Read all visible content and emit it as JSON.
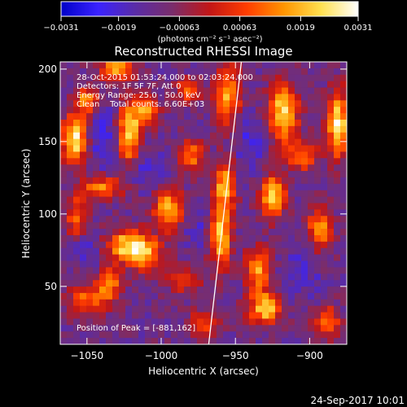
{
  "chart_data": {
    "type": "heatmap",
    "title": "Reconstructed RHESSI Image",
    "xlabel": "Heliocentric X (arcsec)",
    "ylabel": "Heliocentric Y (arcsec)",
    "xlim": [
      -1068,
      -875
    ],
    "ylim": [
      10,
      205
    ],
    "xticks": [
      -1050,
      -1000,
      -950,
      -900
    ],
    "yticks": [
      50,
      100,
      150,
      200
    ],
    "xtick_labels": [
      "−1050",
      "−1000",
      "−950",
      "−900"
    ],
    "ytick_labels": [
      "50",
      "100",
      "150",
      "200"
    ],
    "colorbar": {
      "range": [
        -0.0031,
        0.0031
      ],
      "ticks": [
        -0.0031,
        -0.0019,
        -0.00063,
        0.00063,
        0.0019,
        0.0031
      ],
      "tick_labels": [
        "−0.0031",
        "−0.0019",
        "−0.00063",
        "0.00063",
        "0.0019",
        "0.0031"
      ],
      "unit_label": "(photons cm⁻² s⁻¹ asec⁻²)",
      "colormap": [
        "#0000c8",
        "#3a22ff",
        "#5a2ca6",
        "#7a2d6b",
        "#c21616",
        "#ff3d00",
        "#ff9500",
        "#ffe050",
        "#ffffff"
      ]
    },
    "annotations": {
      "time": "28-Oct-2015 01:53:24.000 to 02:03:24.000",
      "detectors": "Detectors: 1F 5F 7F, Att 0",
      "energy": "Energy Range: 25.0 - 50.0 keV",
      "clean": "Clean    Total counts: 6.60E+03",
      "peak": "Position of Peak = [-881,162]"
    },
    "limb_line": {
      "x1": -968,
      "y1": 10,
      "x2": -946,
      "y2": 205
    },
    "emission_sources": [
      {
        "x": -1058,
        "y": 152,
        "amp": 1.0,
        "sx": 6,
        "sy": 12
      },
      {
        "x": -1057,
        "y": 98,
        "amp": 0.55,
        "sx": 5,
        "sy": 10
      },
      {
        "x": -1050,
        "y": 178,
        "amp": 0.7,
        "sx": 5,
        "sy": 6
      },
      {
        "x": -1040,
        "y": 118,
        "amp": 0.65,
        "sx": 10,
        "sy": 6
      },
      {
        "x": -1022,
        "y": 155,
        "amp": 0.9,
        "sx": 5,
        "sy": 15
      },
      {
        "x": -1030,
        "y": 200,
        "amp": 0.75,
        "sx": 8,
        "sy": 6
      },
      {
        "x": -1010,
        "y": 170,
        "amp": 0.7,
        "sx": 6,
        "sy": 8
      },
      {
        "x": -1023,
        "y": 78,
        "amp": 0.85,
        "sx": 10,
        "sy": 8
      },
      {
        "x": -1010,
        "y": 72,
        "amp": 0.6,
        "sx": 8,
        "sy": 8
      },
      {
        "x": -1050,
        "y": 40,
        "amp": 0.55,
        "sx": 10,
        "sy": 8
      },
      {
        "x": -1035,
        "y": 52,
        "amp": 0.6,
        "sx": 6,
        "sy": 8
      },
      {
        "x": -995,
        "y": 103,
        "amp": 0.8,
        "sx": 7,
        "sy": 10
      },
      {
        "x": -980,
        "y": 140,
        "amp": 0.6,
        "sx": 6,
        "sy": 8
      },
      {
        "x": -982,
        "y": 185,
        "amp": 0.6,
        "sx": 6,
        "sy": 6
      },
      {
        "x": -985,
        "y": 55,
        "amp": 0.55,
        "sx": 8,
        "sy": 6
      },
      {
        "x": -970,
        "y": 25,
        "amp": 0.5,
        "sx": 8,
        "sy": 6
      },
      {
        "x": -960,
        "y": 85,
        "amp": 0.85,
        "sx": 5,
        "sy": 16
      },
      {
        "x": -957,
        "y": 120,
        "amp": 0.75,
        "sx": 5,
        "sy": 12
      },
      {
        "x": -955,
        "y": 182,
        "amp": 0.75,
        "sx": 6,
        "sy": 15
      },
      {
        "x": -935,
        "y": 62,
        "amp": 0.7,
        "sx": 6,
        "sy": 10
      },
      {
        "x": -930,
        "y": 35,
        "amp": 0.85,
        "sx": 8,
        "sy": 8
      },
      {
        "x": -925,
        "y": 112,
        "amp": 0.9,
        "sx": 6,
        "sy": 10
      },
      {
        "x": -918,
        "y": 170,
        "amp": 0.9,
        "sx": 7,
        "sy": 14
      },
      {
        "x": -905,
        "y": 140,
        "amp": 0.55,
        "sx": 8,
        "sy": 8
      },
      {
        "x": -893,
        "y": 90,
        "amp": 0.7,
        "sx": 6,
        "sy": 10
      },
      {
        "x": -881,
        "y": 162,
        "amp": 1.0,
        "sx": 5,
        "sy": 16
      },
      {
        "x": -888,
        "y": 25,
        "amp": 0.6,
        "sx": 6,
        "sy": 8
      }
    ],
    "absorption_sources": [
      {
        "x": -1040,
        "y": 150,
        "amp": 0.6,
        "sx": 8,
        "sy": 15
      },
      {
        "x": -1010,
        "y": 130,
        "amp": 0.45,
        "sx": 10,
        "sy": 10
      },
      {
        "x": -975,
        "y": 95,
        "amp": 0.4,
        "sx": 8,
        "sy": 12
      },
      {
        "x": -940,
        "y": 150,
        "amp": 0.55,
        "sx": 8,
        "sy": 14
      },
      {
        "x": -905,
        "y": 60,
        "amp": 0.5,
        "sx": 8,
        "sy": 12
      },
      {
        "x": -1050,
        "y": 75,
        "amp": 0.4,
        "sx": 8,
        "sy": 8
      }
    ]
  },
  "footer": {
    "timestamp": "24-Sep-2017 10:01"
  }
}
